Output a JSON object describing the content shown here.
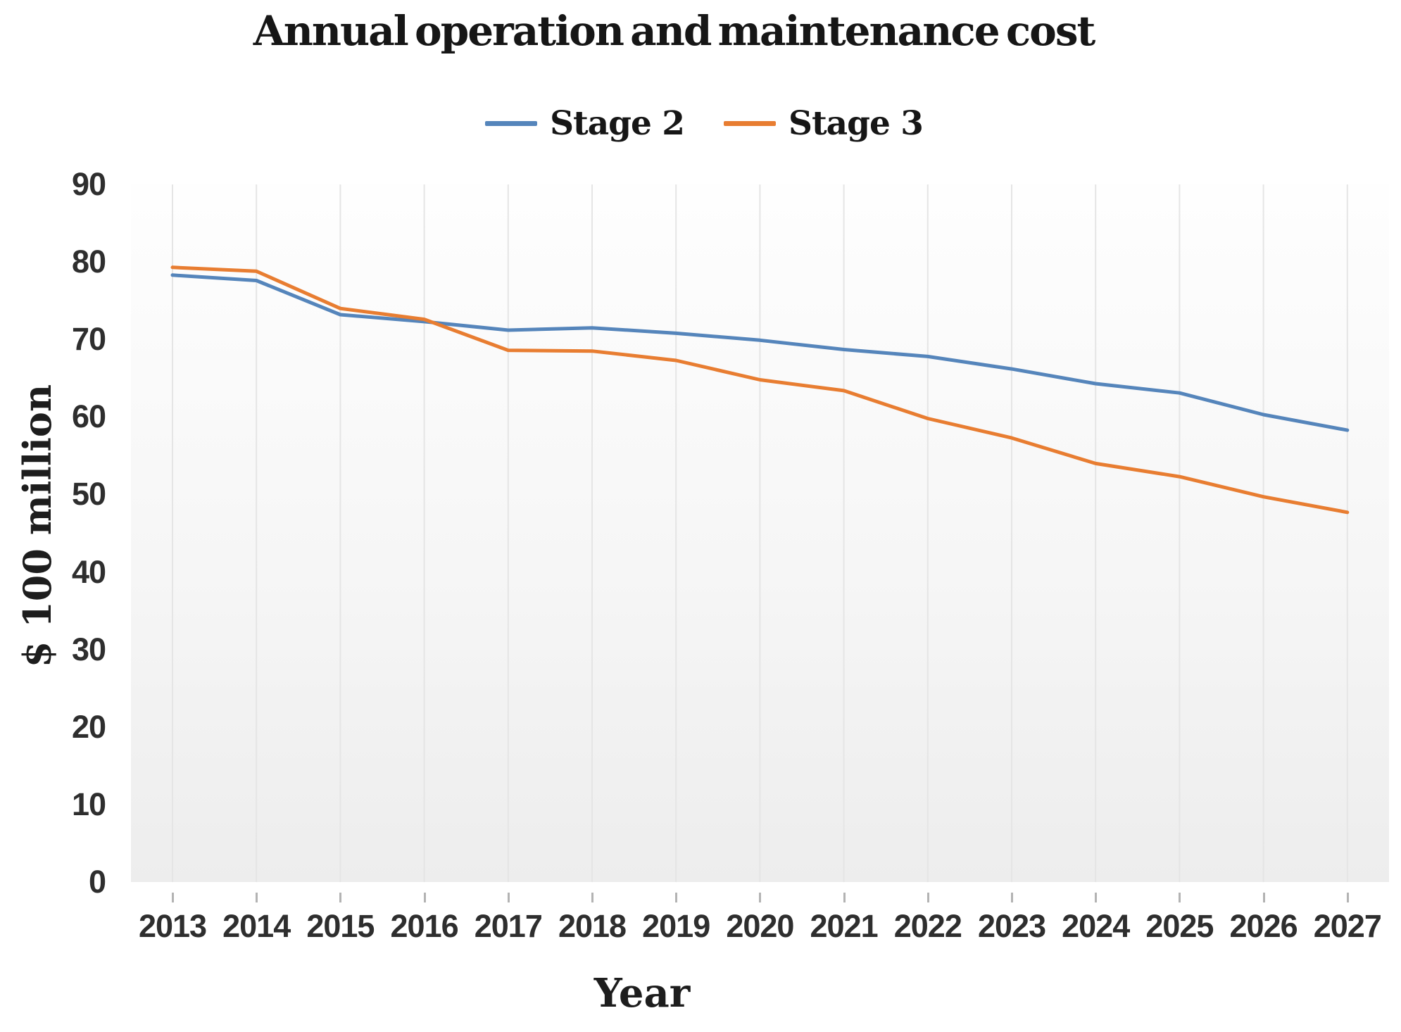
{
  "title": "Annual operation and maintenance cost",
  "chart_data": {
    "type": "line",
    "title": "Annual operation and maintenance cost",
    "xlabel": "Year",
    "ylabel": "$ 100 million",
    "categories": [
      "2013",
      "2014",
      "2015",
      "2016",
      "2017",
      "2018",
      "2019",
      "2020",
      "2021",
      "2022",
      "2023",
      "2024",
      "2025",
      "2026",
      "2027"
    ],
    "series": [
      {
        "name": "Stage 2",
        "color": "#5585bb",
        "values": [
          78.3,
          77.6,
          73.2,
          72.3,
          71.2,
          71.5,
          70.8,
          69.9,
          68.7,
          67.8,
          66.2,
          64.3,
          63.1,
          60.3,
          58.3
        ]
      },
      {
        "name": "Stage 3",
        "color": "#e87d31",
        "values": [
          79.3,
          78.8,
          74.0,
          72.6,
          68.6,
          68.5,
          67.3,
          64.8,
          63.4,
          59.8,
          57.3,
          54.0,
          52.3,
          49.7,
          47.7
        ]
      }
    ],
    "ylim": [
      0,
      90
    ],
    "yticks": [
      0,
      10,
      20,
      30,
      40,
      50,
      60,
      70,
      80,
      90
    ],
    "grid": "vertical",
    "gridline_color": "#e5e5e5",
    "legend_position": "top"
  }
}
